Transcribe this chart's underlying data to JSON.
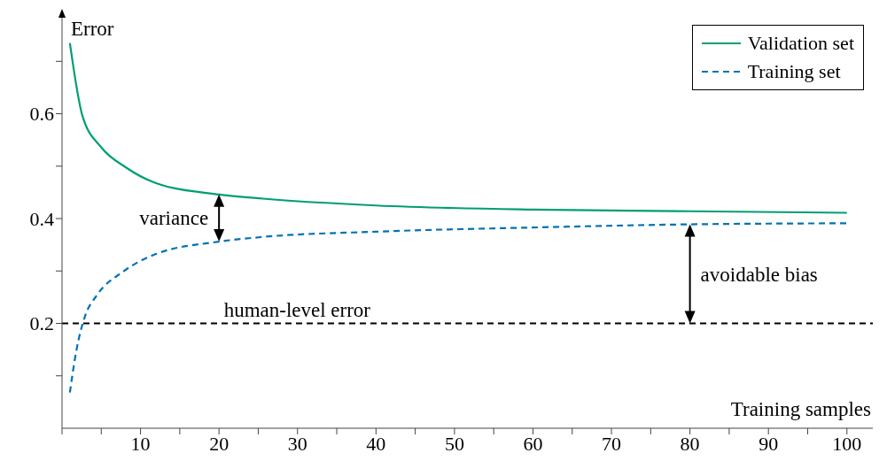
{
  "chart_data": {
    "type": "line",
    "xlabel": "Training samples",
    "ylabel": "Error",
    "xlim": [
      0,
      103.3
    ],
    "ylim": [
      0,
      0.79
    ],
    "xticks": [
      {
        "value": 0,
        "label": null
      },
      {
        "value": 5,
        "label": null
      },
      10,
      {
        "value": 15,
        "label": null
      },
      20,
      {
        "value": 25,
        "label": null
      },
      30,
      {
        "value": 35,
        "label": null
      },
      40,
      {
        "value": 45,
        "label": null
      },
      50,
      {
        "value": 55,
        "label": null
      },
      60,
      {
        "value": 65,
        "label": null
      },
      70,
      {
        "value": 75,
        "label": null
      },
      80,
      {
        "value": 85,
        "label": null
      },
      90,
      {
        "value": 95,
        "label": null
      },
      100
    ],
    "yticks": [
      {
        "value": 0.1,
        "label": null
      },
      0.2,
      {
        "value": 0.3,
        "label": null
      },
      0.4,
      {
        "value": 0.5,
        "label": null
      },
      0.6,
      {
        "value": 0.7,
        "label": null
      }
    ],
    "series": [
      {
        "name": "Validation set",
        "color": "#009e73",
        "line_style": "solid",
        "x": [
          1,
          2.6,
          5,
          8.1,
          11.9,
          20,
          25.6,
          40,
          60,
          80,
          100
        ],
        "values": [
          0.735,
          0.596,
          0.536,
          0.498,
          0.468,
          0.446,
          0.438,
          0.425,
          0.417,
          0.414,
          0.411
        ]
      },
      {
        "name": "Training set",
        "color": "#0072b2",
        "line_style": "dashed",
        "x": [
          1,
          1.85,
          2.96,
          4.4,
          7.8,
          11.9,
          20,
          25.6,
          40,
          60,
          80,
          100
        ],
        "values": [
          0.068,
          0.15,
          0.215,
          0.253,
          0.299,
          0.332,
          0.356,
          0.365,
          0.375,
          0.383,
          0.389,
          0.391
        ]
      }
    ],
    "ref_lines": [
      {
        "axis": "y",
        "value": 0.2,
        "label": "human-level error",
        "color": "#000000",
        "line_style": "dashed"
      }
    ],
    "annotations": [
      {
        "text": "variance",
        "x": 20,
        "y": 0.446
      },
      {
        "text": "avoidable bias",
        "x": 80,
        "y": 0.389
      }
    ],
    "marker": "none",
    "legend": "top right"
  }
}
